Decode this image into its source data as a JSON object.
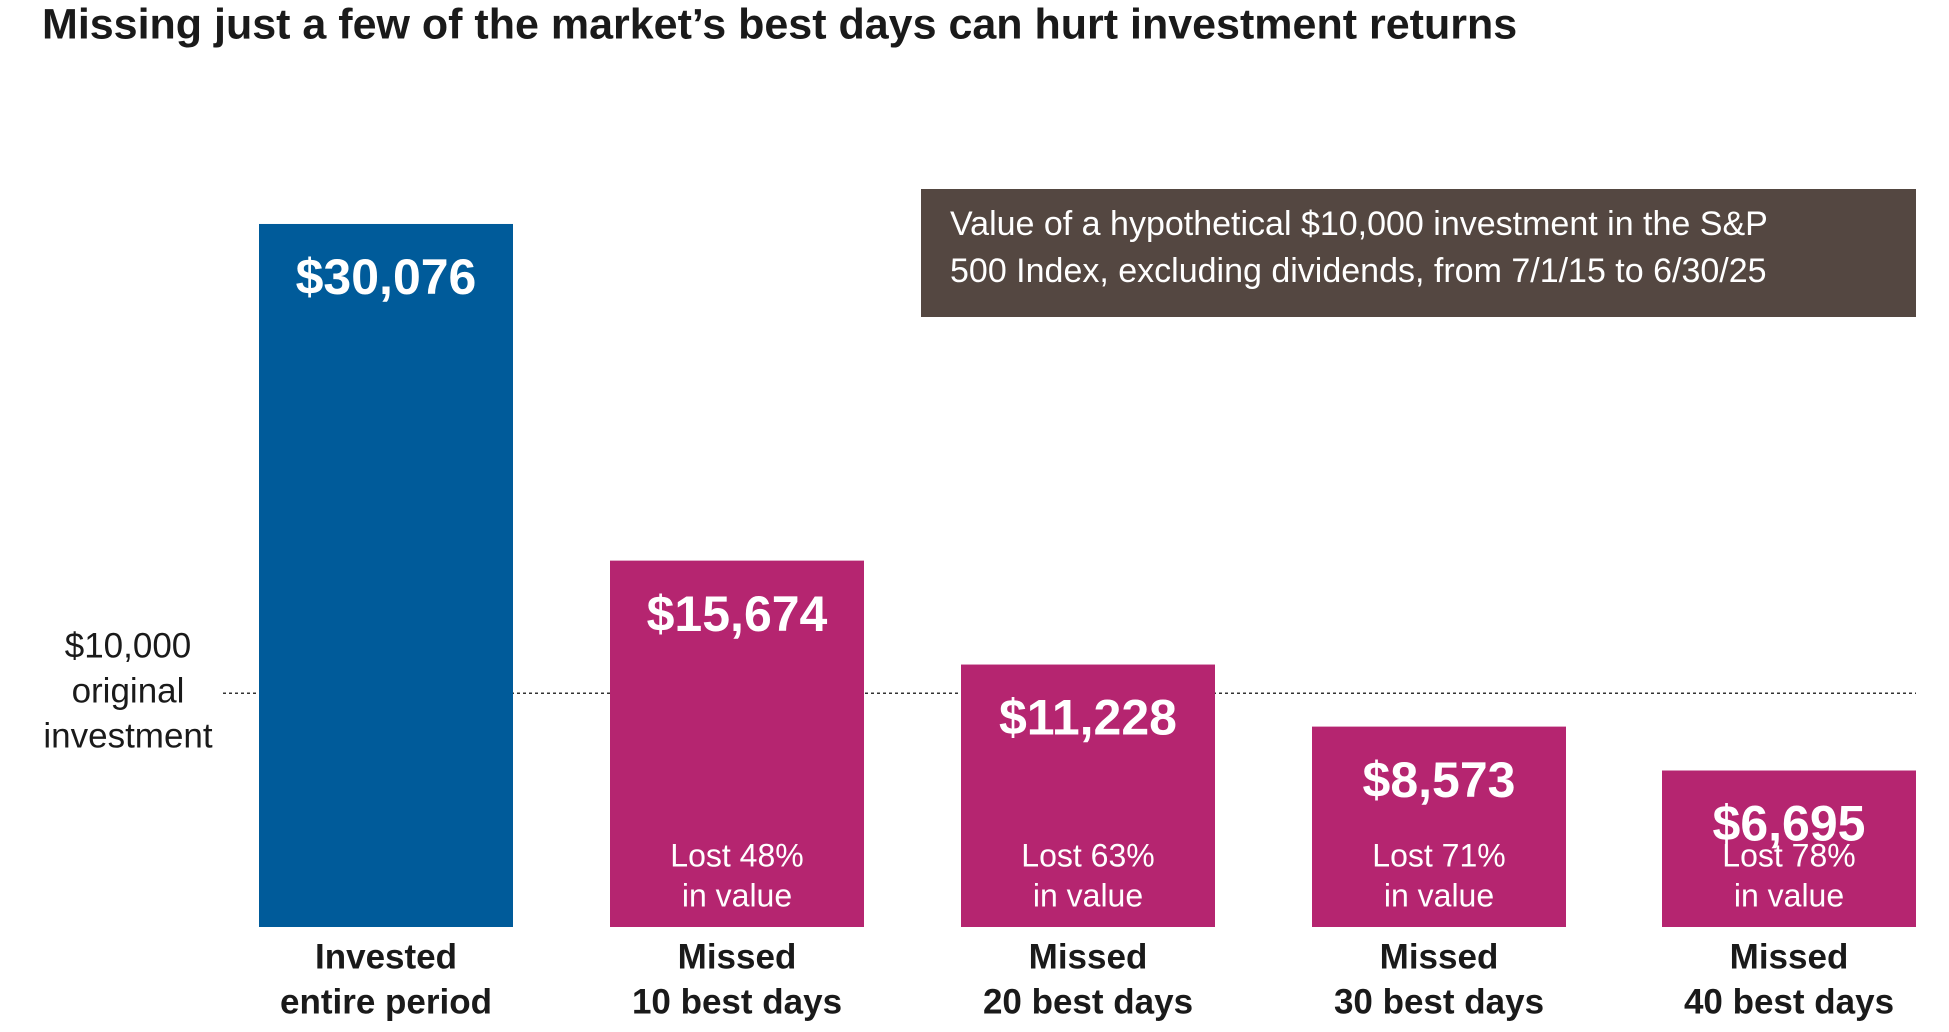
{
  "chart_data": {
    "type": "bar",
    "title": "Missing just a few of the market’s best days can hurt investment returns",
    "note": [
      "Value of a hypothetical $10,000 investment in the S&P",
      "500 Index, excluding dividends, from 7/1/15 to 6/30/25"
    ],
    "categories": [
      [
        "Invested",
        "entire period"
      ],
      [
        "Missed",
        "10 best days"
      ],
      [
        "Missed",
        "20 best days"
      ],
      [
        "Missed",
        "30 best days"
      ],
      [
        "Missed",
        "40 best days"
      ]
    ],
    "values": [
      30076,
      15674,
      11228,
      8573,
      6695
    ],
    "value_labels": [
      "$30,076",
      "$15,674",
      "$11,228",
      "$8,573",
      "$6,695"
    ],
    "annotations": [
      null,
      [
        "Lost 48%",
        "in value"
      ],
      [
        "Lost 63%",
        "in value"
      ],
      [
        "Lost 71%",
        "in value"
      ],
      [
        "Lost 78%",
        "in value"
      ]
    ],
    "colors": [
      "#005b9a",
      "#b52570",
      "#b52570",
      "#b52570",
      "#b52570"
    ],
    "reference": {
      "value": 10000,
      "label": [
        "$10,000",
        "original",
        "investment"
      ]
    },
    "ylim": [
      0,
      32000
    ]
  }
}
